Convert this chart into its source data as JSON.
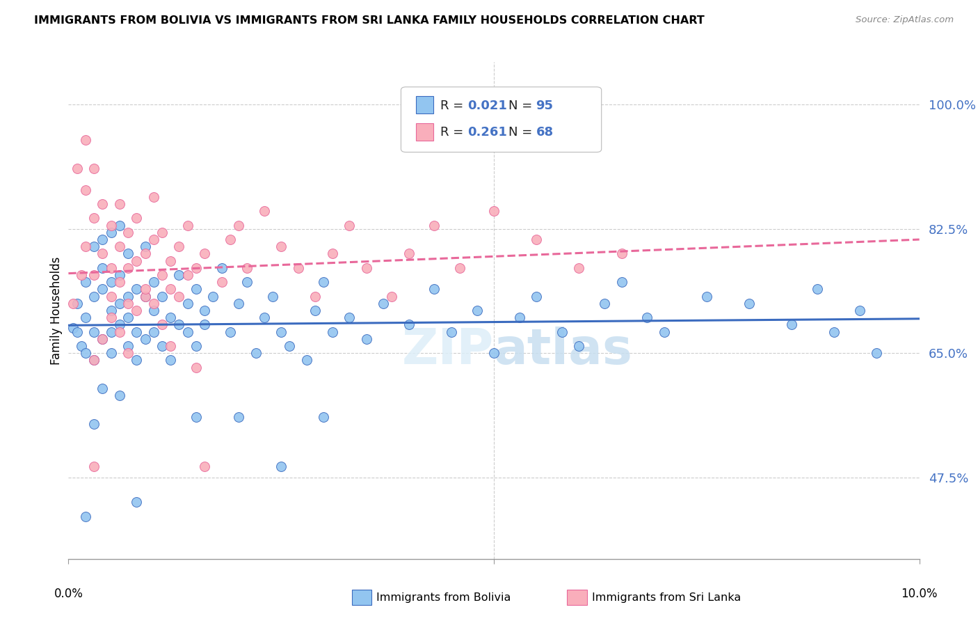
{
  "title": "IMMIGRANTS FROM BOLIVIA VS IMMIGRANTS FROM SRI LANKA FAMILY HOUSEHOLDS CORRELATION CHART",
  "source": "Source: ZipAtlas.com",
  "ylabel": "Family Households",
  "yticks": [
    0.475,
    0.65,
    0.825,
    1.0
  ],
  "ytick_labels": [
    "47.5%",
    "65.0%",
    "82.5%",
    "100.0%"
  ],
  "xmin": 0.0,
  "xmax": 0.1,
  "ymin": 0.36,
  "ymax": 1.06,
  "color_bolivia": "#92C5F0",
  "color_srilanka": "#F9AEBB",
  "color_trend_bolivia": "#3B6BBF",
  "color_trend_srilanka": "#E8689A",
  "legend_bottom_label1": "Immigrants from Bolivia",
  "legend_bottom_label2": "Immigrants from Sri Lanka",
  "bolivia_x": [
    0.0005,
    0.001,
    0.001,
    0.0015,
    0.002,
    0.002,
    0.002,
    0.003,
    0.003,
    0.003,
    0.003,
    0.004,
    0.004,
    0.004,
    0.004,
    0.005,
    0.005,
    0.005,
    0.005,
    0.005,
    0.006,
    0.006,
    0.006,
    0.006,
    0.007,
    0.007,
    0.007,
    0.007,
    0.008,
    0.008,
    0.008,
    0.009,
    0.009,
    0.009,
    0.01,
    0.01,
    0.01,
    0.011,
    0.011,
    0.012,
    0.012,
    0.013,
    0.013,
    0.014,
    0.014,
    0.015,
    0.015,
    0.016,
    0.016,
    0.017,
    0.018,
    0.019,
    0.02,
    0.021,
    0.022,
    0.023,
    0.024,
    0.025,
    0.026,
    0.028,
    0.029,
    0.03,
    0.031,
    0.033,
    0.035,
    0.037,
    0.04,
    0.043,
    0.045,
    0.048,
    0.05,
    0.053,
    0.055,
    0.058,
    0.06,
    0.063,
    0.065,
    0.068,
    0.07,
    0.075,
    0.08,
    0.085,
    0.088,
    0.09,
    0.093,
    0.095,
    0.02,
    0.025,
    0.03,
    0.015,
    0.008,
    0.006,
    0.004,
    0.003,
    0.002
  ],
  "bolivia_y": [
    0.685,
    0.72,
    0.68,
    0.66,
    0.75,
    0.7,
    0.65,
    0.68,
    0.73,
    0.8,
    0.64,
    0.67,
    0.74,
    0.81,
    0.77,
    0.71,
    0.75,
    0.68,
    0.82,
    0.65,
    0.69,
    0.76,
    0.72,
    0.83,
    0.66,
    0.73,
    0.79,
    0.7,
    0.74,
    0.68,
    0.64,
    0.73,
    0.67,
    0.8,
    0.71,
    0.75,
    0.68,
    0.73,
    0.66,
    0.7,
    0.64,
    0.76,
    0.69,
    0.72,
    0.68,
    0.74,
    0.66,
    0.71,
    0.69,
    0.73,
    0.77,
    0.68,
    0.72,
    0.75,
    0.65,
    0.7,
    0.73,
    0.68,
    0.66,
    0.64,
    0.71,
    0.75,
    0.68,
    0.7,
    0.67,
    0.72,
    0.69,
    0.74,
    0.68,
    0.71,
    0.65,
    0.7,
    0.73,
    0.68,
    0.66,
    0.72,
    0.75,
    0.7,
    0.68,
    0.73,
    0.72,
    0.69,
    0.74,
    0.68,
    0.71,
    0.65,
    0.56,
    0.49,
    0.56,
    0.56,
    0.44,
    0.59,
    0.6,
    0.55,
    0.42
  ],
  "srilanka_x": [
    0.0005,
    0.001,
    0.0015,
    0.002,
    0.002,
    0.003,
    0.003,
    0.003,
    0.004,
    0.004,
    0.005,
    0.005,
    0.005,
    0.006,
    0.006,
    0.006,
    0.007,
    0.007,
    0.007,
    0.008,
    0.008,
    0.009,
    0.009,
    0.01,
    0.01,
    0.011,
    0.011,
    0.012,
    0.012,
    0.013,
    0.014,
    0.015,
    0.016,
    0.018,
    0.019,
    0.02,
    0.021,
    0.023,
    0.025,
    0.027,
    0.029,
    0.031,
    0.033,
    0.035,
    0.038,
    0.04,
    0.043,
    0.046,
    0.05,
    0.055,
    0.06,
    0.065,
    0.003,
    0.004,
    0.005,
    0.006,
    0.007,
    0.008,
    0.009,
    0.01,
    0.011,
    0.012,
    0.013,
    0.014,
    0.015,
    0.016,
    0.002,
    0.003
  ],
  "srilanka_y": [
    0.72,
    0.91,
    0.76,
    0.88,
    0.8,
    0.84,
    0.91,
    0.76,
    0.79,
    0.86,
    0.83,
    0.77,
    0.73,
    0.86,
    0.8,
    0.75,
    0.82,
    0.77,
    0.72,
    0.78,
    0.84,
    0.79,
    0.73,
    0.81,
    0.87,
    0.76,
    0.82,
    0.78,
    0.74,
    0.8,
    0.83,
    0.77,
    0.79,
    0.75,
    0.81,
    0.83,
    0.77,
    0.85,
    0.8,
    0.77,
    0.73,
    0.79,
    0.83,
    0.77,
    0.73,
    0.79,
    0.83,
    0.77,
    0.85,
    0.81,
    0.77,
    0.79,
    0.64,
    0.67,
    0.7,
    0.68,
    0.65,
    0.71,
    0.74,
    0.72,
    0.69,
    0.66,
    0.73,
    0.76,
    0.63,
    0.49,
    0.95,
    0.49
  ]
}
